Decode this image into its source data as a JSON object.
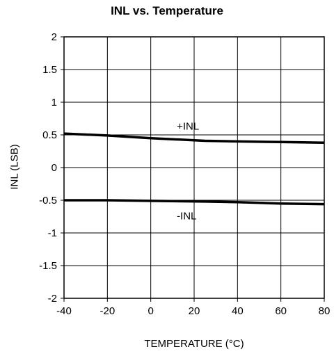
{
  "chart_data": {
    "type": "line",
    "title": "INL vs. Temperature",
    "xlabel": "TEMPERATURE (°C)",
    "ylabel": "INL (LSB)",
    "xlim": [
      -40,
      80
    ],
    "ylim": [
      -2,
      2
    ],
    "xticks": [
      "-40",
      "-20",
      "0",
      "20",
      "40",
      "60",
      "80"
    ],
    "yticks": [
      "2",
      "1.5",
      "1",
      "0.5",
      "0",
      "-0.5",
      "-1",
      "-1.5",
      "-2"
    ],
    "grid": true,
    "legend": "none",
    "series": [
      {
        "name": "+INL",
        "x": [
          -40,
          -20,
          0,
          25,
          40,
          60,
          80
        ],
        "y": [
          0.52,
          0.49,
          0.45,
          0.41,
          0.4,
          0.39,
          0.38
        ]
      },
      {
        "name": "-INL",
        "x": [
          -40,
          -20,
          0,
          25,
          40,
          60,
          80
        ],
        "y": [
          -0.5,
          -0.5,
          -0.51,
          -0.52,
          -0.53,
          -0.55,
          -0.56
        ]
      }
    ]
  }
}
